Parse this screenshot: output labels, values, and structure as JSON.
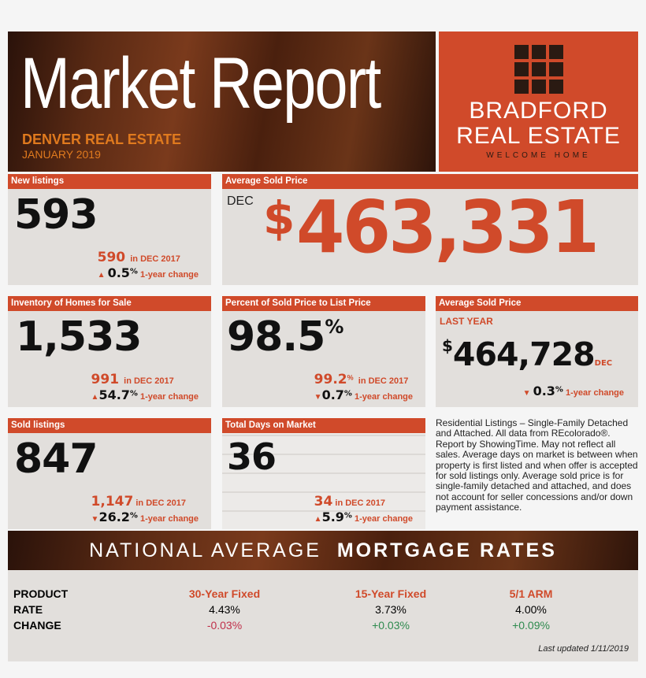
{
  "header": {
    "title": "Market Report",
    "subtitle": "DENVER REAL ESTATE",
    "date": "JANUARY 2019"
  },
  "logo": {
    "line1": "BRADFORD",
    "line2": "REAL ESTATE",
    "tagline": "WELCOME HOME",
    "color": "#d04a2a"
  },
  "new_listings": {
    "label": "New listings",
    "value": "593",
    "prev": "590",
    "prev_label": "in DEC 2017",
    "change": "0.5",
    "direction": "up",
    "change_label": "1-year change"
  },
  "avg_sold_price": {
    "label": "Average Sold Price",
    "period": "DEC",
    "currency": "$",
    "value": "463,331"
  },
  "inventory": {
    "label": "Inventory of Homes for Sale",
    "value": "1,533",
    "prev": "991",
    "prev_label": "in DEC 2017",
    "change": "54.7",
    "direction": "up",
    "change_label": "1-year change"
  },
  "pct_sold_to_list": {
    "label": "Percent of Sold Price to List Price",
    "value": "98.5",
    "prev": "99.2",
    "prev_label": "in DEC 2017",
    "change": "0.7",
    "direction": "down",
    "change_label": "1-year change"
  },
  "avg_sold_price_last_year": {
    "label": "Average Sold Price",
    "sublabel": "LAST YEAR",
    "currency": "$",
    "value": "464,728",
    "period": "DEC",
    "change": "0.3",
    "direction": "down",
    "change_label": "1-year change"
  },
  "sold_listings": {
    "label": "Sold listings",
    "value": "847",
    "prev": "1,147",
    "prev_label": "in DEC 2017",
    "change": "26.2",
    "direction": "down",
    "change_label": "1-year change"
  },
  "days_on_market": {
    "label": "Total Days on Market",
    "value": "36",
    "prev": "34",
    "prev_label": "in DEC 2017",
    "change": "5.9",
    "direction": "up",
    "change_label": "1-year change"
  },
  "pct": "%",
  "disclaimer": "Residential Listings – Single-Family Detached and Attached. All data from REcolorado®. Report by ShowingTime. May not reflect all sales. Average days on market is between when property is first listed and when offer is accepted for sold listings only. Average sold price is for single-family detached and attached, and does not account for seller concessions and/or down payment assistance.",
  "mortgage": {
    "banner_light": "NATIONAL AVERAGE",
    "banner_bold": "MORTGAGE RATES",
    "row_labels": [
      "PRODUCT",
      "RATE",
      "CHANGE"
    ],
    "products": [
      {
        "name": "30-Year Fixed",
        "rate": "4.43%",
        "change": "-0.03%",
        "change_color": "#c0304a"
      },
      {
        "name": "15-Year Fixed",
        "rate": "3.73%",
        "change": "+0.03%",
        "change_color": "#2e8a4e"
      },
      {
        "name": "5/1 ARM",
        "rate": "4.00%",
        "change": "+0.09%",
        "change_color": "#2e8a4e"
      }
    ],
    "updated": "Last updated 1/11/2019"
  }
}
